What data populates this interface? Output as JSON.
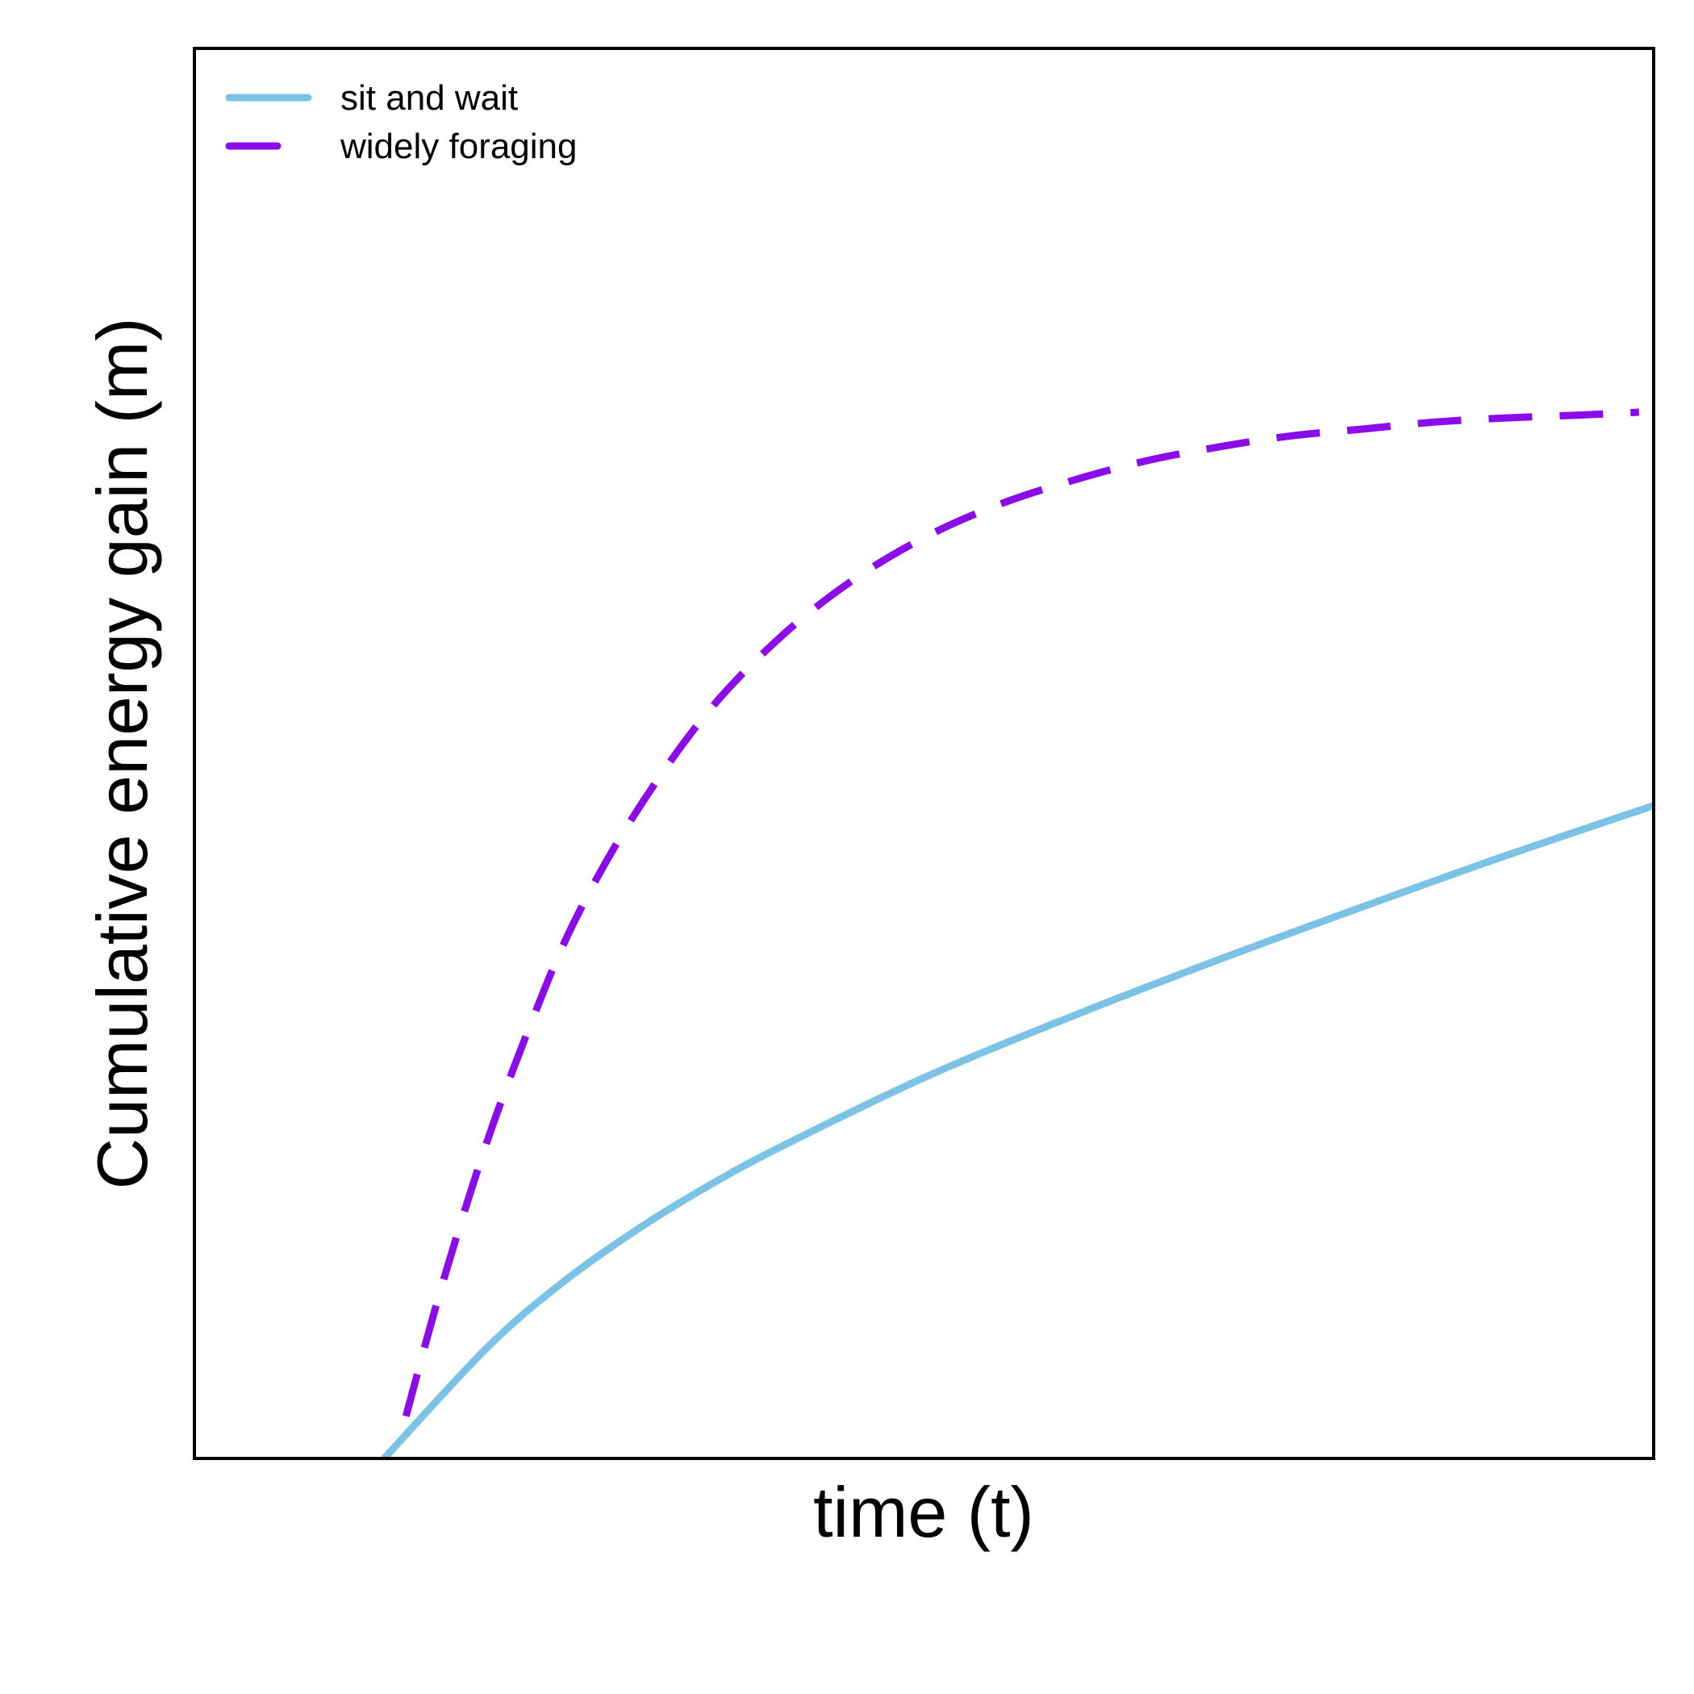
{
  "chart_data": {
    "type": "line",
    "title": "",
    "xlabel": "time (t)",
    "ylabel": "Cumulative energy gain (m)",
    "xlim": [
      0,
      10
    ],
    "ylim": [
      0,
      10
    ],
    "x_ticks": false,
    "y_ticks": false,
    "grid": false,
    "legend_position": "top-left",
    "series": [
      {
        "name": "sit and wait",
        "color": "#7BC3E6",
        "line_style": "solid",
        "x": [
          1.3,
          2.0,
          2.5,
          3.0,
          3.5,
          4.0,
          5.0,
          6.0,
          7.0,
          8.0,
          9.0,
          10.0
        ],
        "y": [
          0.0,
          0.78,
          1.23,
          1.6,
          1.92,
          2.2,
          2.7,
          3.13,
          3.53,
          3.91,
          4.28,
          4.63
        ]
      },
      {
        "name": "widely foraging",
        "color": "#8B0BEA",
        "line_style": "dashed",
        "x": [
          1.45,
          1.7,
          2.0,
          2.3,
          2.6,
          3.0,
          3.5,
          4.0,
          4.5,
          5.0,
          5.5,
          6.0,
          6.5,
          7.0,
          7.5,
          8.0,
          8.5,
          9.0,
          9.5,
          9.9
        ],
        "y": [
          0.3,
          1.24,
          2.23,
          3.07,
          3.8,
          4.54,
          5.27,
          5.81,
          6.22,
          6.53,
          6.76,
          6.93,
          7.07,
          7.17,
          7.25,
          7.3,
          7.35,
          7.38,
          7.4,
          7.42
        ]
      }
    ]
  }
}
